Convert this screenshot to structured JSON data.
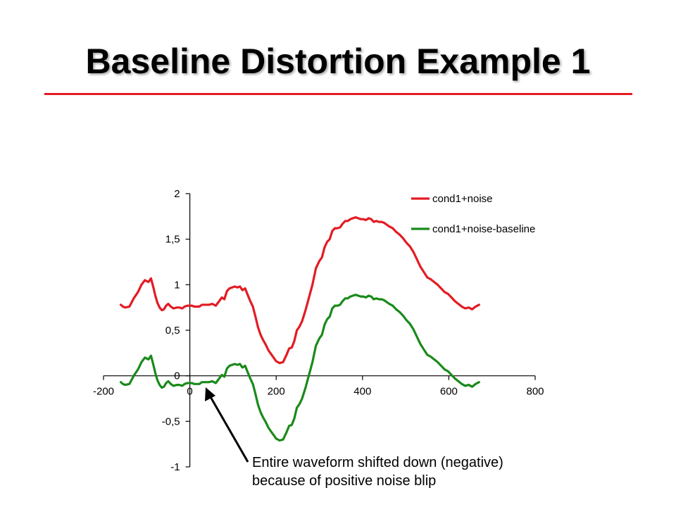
{
  "slide": {
    "title": "Baseline Distortion Example 1"
  },
  "annotation": {
    "line1": "Entire waveform shifted down (negative)",
    "line2": "because of positive noise blip"
  },
  "colors": {
    "title_rule": "#e31b23",
    "series_red": "#e31b23",
    "series_green": "#1a8a1a",
    "axis": "#000000"
  },
  "chart_data": {
    "type": "line",
    "xlim": [
      -200,
      800
    ],
    "ylim": [
      -1,
      2
    ],
    "x_ticks": [
      -200,
      0,
      200,
      400,
      600,
      800
    ],
    "x_tick_labels": [
      "-200",
      "0",
      "200",
      "400",
      "600",
      "800"
    ],
    "y_ticks": [
      2,
      1.5,
      1,
      0.5,
      0,
      -0.5,
      -1
    ],
    "y_tick_labels": [
      "2",
      "1,5",
      "1",
      "0,5",
      "0",
      "-0,5",
      "-1"
    ],
    "legend_position": "top-right",
    "grid": false,
    "series": [
      {
        "name": "cond1+noise",
        "color": "#e31b23",
        "x": [
          -160,
          -155,
          -150,
          -140,
          -130,
          -120,
          -112,
          -104,
          -96,
          -90,
          -85,
          -80,
          -75,
          -70,
          -65,
          -60,
          -55,
          -50,
          -44,
          -38,
          -30,
          -24,
          -18,
          -12,
          -6,
          0,
          5,
          10,
          16,
          22,
          28,
          36,
          44,
          52,
          60,
          68,
          74,
          80,
          86,
          92,
          98,
          104,
          110,
          116,
          122,
          128,
          134,
          140,
          146,
          152,
          158,
          164,
          170,
          176,
          182,
          188,
          194,
          200,
          208,
          216,
          224,
          230,
          236,
          242,
          248,
          254,
          260,
          268,
          276,
          284,
          292,
          300,
          306,
          312,
          318,
          324,
          330,
          336,
          342,
          348,
          354,
          360,
          366,
          372,
          378,
          384,
          390,
          396,
          402,
          408,
          414,
          420,
          426,
          432,
          438,
          444,
          450,
          456,
          462,
          470,
          478,
          486,
          494,
          502,
          510,
          518,
          526,
          534,
          542,
          550,
          558,
          566,
          574,
          582,
          590,
          598,
          606,
          614,
          622,
          630,
          638,
          646,
          654,
          662,
          670
        ],
        "y": [
          0.78,
          0.76,
          0.75,
          0.76,
          0.85,
          0.92,
          1.0,
          1.05,
          1.03,
          1.07,
          0.98,
          0.88,
          0.8,
          0.75,
          0.72,
          0.73,
          0.77,
          0.79,
          0.76,
          0.74,
          0.75,
          0.75,
          0.74,
          0.76,
          0.77,
          0.77,
          0.77,
          0.76,
          0.76,
          0.76,
          0.78,
          0.78,
          0.78,
          0.79,
          0.77,
          0.82,
          0.86,
          0.84,
          0.93,
          0.96,
          0.97,
          0.98,
          0.97,
          0.98,
          0.94,
          0.96,
          0.89,
          0.82,
          0.76,
          0.65,
          0.53,
          0.45,
          0.39,
          0.34,
          0.28,
          0.24,
          0.2,
          0.16,
          0.14,
          0.15,
          0.23,
          0.3,
          0.31,
          0.38,
          0.5,
          0.54,
          0.6,
          0.72,
          0.86,
          1.0,
          1.18,
          1.26,
          1.3,
          1.41,
          1.47,
          1.5,
          1.59,
          1.62,
          1.62,
          1.63,
          1.67,
          1.7,
          1.7,
          1.72,
          1.73,
          1.74,
          1.73,
          1.72,
          1.72,
          1.71,
          1.73,
          1.72,
          1.69,
          1.7,
          1.69,
          1.69,
          1.68,
          1.66,
          1.64,
          1.62,
          1.58,
          1.55,
          1.51,
          1.46,
          1.42,
          1.36,
          1.28,
          1.2,
          1.14,
          1.08,
          1.06,
          1.03,
          1.0,
          0.96,
          0.92,
          0.9,
          0.86,
          0.82,
          0.79,
          0.76,
          0.74,
          0.75,
          0.73,
          0.76,
          0.78
        ]
      },
      {
        "name": "cond1+noise-baseline",
        "color": "#1a8a1a",
        "x": [
          -160,
          -155,
          -150,
          -140,
          -130,
          -120,
          -112,
          -104,
          -96,
          -90,
          -85,
          -80,
          -75,
          -70,
          -65,
          -60,
          -55,
          -50,
          -44,
          -38,
          -30,
          -24,
          -18,
          -12,
          -6,
          0,
          5,
          10,
          16,
          22,
          28,
          36,
          44,
          52,
          60,
          68,
          74,
          80,
          86,
          92,
          98,
          104,
          110,
          116,
          122,
          128,
          134,
          140,
          146,
          152,
          158,
          164,
          170,
          176,
          182,
          188,
          194,
          200,
          208,
          216,
          224,
          230,
          236,
          242,
          248,
          254,
          260,
          268,
          276,
          284,
          292,
          300,
          306,
          312,
          318,
          324,
          330,
          336,
          342,
          348,
          354,
          360,
          366,
          372,
          378,
          384,
          390,
          396,
          402,
          408,
          414,
          420,
          426,
          432,
          438,
          444,
          450,
          456,
          462,
          470,
          478,
          486,
          494,
          502,
          510,
          518,
          526,
          534,
          542,
          550,
          558,
          566,
          574,
          582,
          590,
          598,
          606,
          614,
          622,
          630,
          638,
          646,
          654,
          662,
          670
        ],
        "y": [
          -0.07,
          -0.09,
          -0.1,
          -0.09,
          0.0,
          0.07,
          0.15,
          0.2,
          0.18,
          0.22,
          0.13,
          0.03,
          -0.05,
          -0.1,
          -0.13,
          -0.12,
          -0.08,
          -0.06,
          -0.09,
          -0.11,
          -0.1,
          -0.1,
          -0.11,
          -0.09,
          -0.08,
          -0.08,
          -0.08,
          -0.09,
          -0.09,
          -0.09,
          -0.07,
          -0.07,
          -0.07,
          -0.06,
          -0.08,
          -0.03,
          0.01,
          -0.01,
          0.08,
          0.11,
          0.12,
          0.13,
          0.12,
          0.13,
          0.09,
          0.11,
          0.04,
          -0.03,
          -0.09,
          -0.2,
          -0.32,
          -0.4,
          -0.46,
          -0.51,
          -0.57,
          -0.61,
          -0.65,
          -0.69,
          -0.71,
          -0.7,
          -0.62,
          -0.55,
          -0.54,
          -0.47,
          -0.35,
          -0.31,
          -0.25,
          -0.13,
          0.01,
          0.15,
          0.33,
          0.41,
          0.45,
          0.56,
          0.62,
          0.65,
          0.74,
          0.77,
          0.77,
          0.78,
          0.82,
          0.85,
          0.85,
          0.87,
          0.88,
          0.89,
          0.88,
          0.87,
          0.87,
          0.86,
          0.88,
          0.87,
          0.84,
          0.85,
          0.84,
          0.84,
          0.83,
          0.81,
          0.79,
          0.77,
          0.73,
          0.7,
          0.66,
          0.61,
          0.57,
          0.51,
          0.43,
          0.35,
          0.29,
          0.23,
          0.21,
          0.18,
          0.15,
          0.11,
          0.07,
          0.05,
          0.01,
          -0.03,
          -0.06,
          -0.09,
          -0.11,
          -0.1,
          -0.12,
          -0.09,
          -0.07
        ]
      }
    ]
  }
}
